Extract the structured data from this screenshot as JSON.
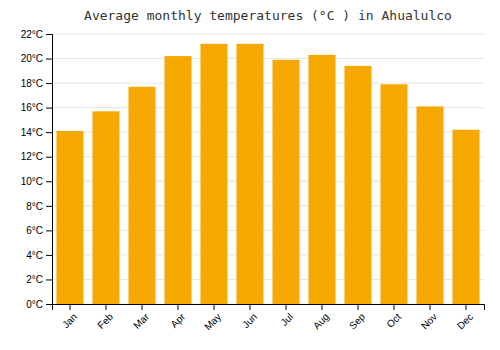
{
  "chart_data": {
    "type": "bar",
    "title": "Average monthly temperatures (°C ) in Ahualulco",
    "categories": [
      "Jan",
      "Feb",
      "Mar",
      "Apr",
      "May",
      "Jun",
      "Jul",
      "Aug",
      "Sep",
      "Oct",
      "Nov",
      "Dec"
    ],
    "values": [
      14.1,
      15.7,
      17.7,
      20.2,
      21.2,
      21.2,
      19.9,
      20.3,
      19.4,
      17.9,
      16.1,
      14.2
    ],
    "color": "#F5A800",
    "ylim": [
      0,
      22
    ],
    "yticks": [
      {
        "value": 0,
        "label": "0°C"
      },
      {
        "value": 2,
        "label": "2°C"
      },
      {
        "value": 4,
        "label": "4°C"
      },
      {
        "value": 6,
        "label": "6°C"
      },
      {
        "value": 8,
        "label": "8°C"
      },
      {
        "value": 10,
        "label": "10°C"
      },
      {
        "value": 12,
        "label": "12°C"
      },
      {
        "value": 14,
        "label": "14°C"
      },
      {
        "value": 16,
        "label": "16°C"
      },
      {
        "value": 18,
        "label": "18°C"
      },
      {
        "value": 20,
        "label": "20°C"
      },
      {
        "value": 22,
        "label": "22°C"
      }
    ],
    "grid": true
  }
}
